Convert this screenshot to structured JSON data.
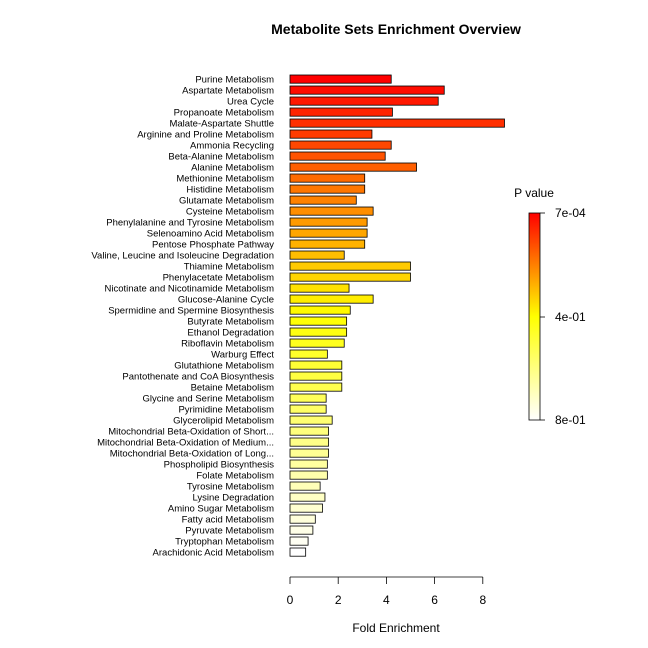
{
  "chart_data": {
    "type": "bar",
    "orientation": "horizontal",
    "title": "Metabolite Sets Enrichment Overview",
    "xlabel": "Fold Enrichment",
    "ylabel": "",
    "xlim": [
      0,
      8
    ],
    "xticks": [
      0,
      2,
      4,
      6,
      8
    ],
    "grid": false,
    "categories": [
      "Purine Metabolism",
      "Aspartate Metabolism",
      "Urea Cycle",
      "Propanoate Metabolism",
      "Malate-Aspartate Shuttle",
      "Arginine and Proline Metabolism",
      "Ammonia Recycling",
      "Beta-Alanine Metabolism",
      "Alanine Metabolism",
      "Methionine Metabolism",
      "Histidine Metabolism",
      "Glutamate Metabolism",
      "Cysteine Metabolism",
      "Phenylalanine and Tyrosine Metabolism",
      "Selenoamino Acid Metabolism",
      "Pentose Phosphate Pathway",
      "Valine, Leucine and Isoleucine Degradation",
      "Thiamine Metabolism",
      "Phenylacetate Metabolism",
      "Nicotinate and Nicotinamide Metabolism",
      "Glucose-Alanine Cycle",
      "Spermidine and Spermine Biosynthesis",
      "Butyrate Metabolism",
      "Ethanol Degradation",
      "Riboflavin Metabolism",
      "Warburg Effect",
      "Glutathione Metabolism",
      "Pantothenate and CoA Biosynthesis",
      "Betaine Metabolism",
      "Glycine and Serine Metabolism",
      "Pyrimidine Metabolism",
      "Glycerolipid Metabolism",
      "Mitochondrial Beta-Oxidation of Short...",
      "Mitochondrial Beta-Oxidation of Medium...",
      "Mitochondrial Beta-Oxidation of Long...",
      "Phospholipid Biosynthesis",
      "Folate Metabolism",
      "Tyrosine Metabolism",
      "Lysine Degradation",
      "Amino Sugar Metabolism",
      "Fatty acid Metabolism",
      "Pyruvate Metabolism",
      "Tryptophan Metabolism",
      "Arachidonic Acid Metabolism"
    ],
    "values": [
      4.2,
      6.4,
      6.15,
      4.25,
      8.9,
      3.4,
      4.2,
      3.95,
      5.25,
      3.1,
      3.1,
      2.75,
      3.45,
      3.2,
      3.2,
      3.1,
      2.25,
      5.0,
      5.0,
      2.45,
      3.45,
      2.5,
      2.35,
      2.35,
      2.25,
      1.55,
      2.15,
      2.15,
      2.15,
      1.5,
      1.5,
      1.75,
      1.6,
      1.6,
      1.6,
      1.55,
      1.55,
      1.25,
      1.45,
      1.35,
      1.05,
      0.95,
      0.75,
      0.65
    ],
    "legend": {
      "title": "P value",
      "placement": "right",
      "labels": [
        "7e-04",
        "4e-01",
        "8e-01"
      ],
      "colors": [
        "#ff0000",
        "#ffff00",
        "#ffffff"
      ]
    }
  }
}
